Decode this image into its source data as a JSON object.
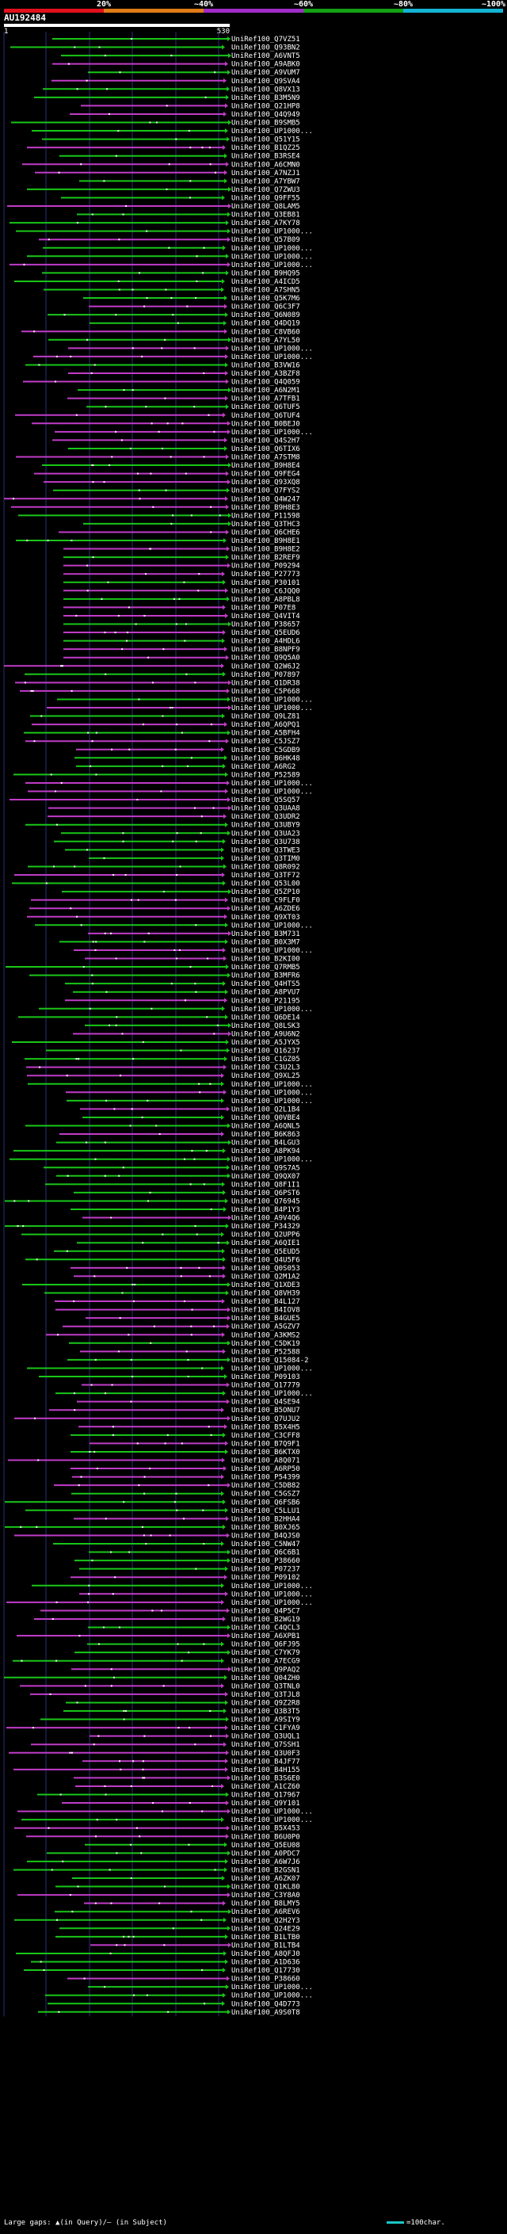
{
  "legend": {
    "segments": [
      {
        "label": "20%",
        "color": "#e0101c"
      },
      {
        "label": "~40%",
        "color": "#e07c18"
      },
      {
        "label": "~60%",
        "color": "#a02cc8"
      },
      {
        "label": "~80%",
        "color": "#14a014"
      },
      {
        "label": "~100%",
        "color": "#14b4d4"
      }
    ]
  },
  "query": {
    "id": "AU192484",
    "start": "1",
    "end": "530"
  },
  "colors": {
    "green": "#19c619",
    "magenta": "#c03cc8",
    "grid": "#2a2f7a",
    "dot": "#ffffff"
  },
  "hits": [
    "UniRef100_Q7VZ51",
    "UniRef100_Q93BN2",
    "UniRef100_A6VNT5",
    "UniRef100_A9ABK0",
    "UniRef100_A9VUM7",
    "UniRef100_Q9SVA4",
    "UniRef100_Q8VX13",
    "UniRef100_B3M5N9",
    "UniRef100_Q21HP8",
    "UniRef100_Q4Q949",
    "UniRef100_B9SMB5",
    "UniRef100_UP1000...",
    "UniRef100_Q51Y15",
    "UniRef100_B1QZ25",
    "UniRef100_B3RSE4",
    "UniRef100_A6CMN0",
    "UniRef100_A7NZJ1",
    "UniRef100_A7YBW7",
    "UniRef100_Q7ZWU3",
    "UniRef100_Q9FF55",
    "UniRef100_Q8LAM5",
    "UniRef100_Q3EB81",
    "UniRef100_A7KY78",
    "UniRef100_UP1000...",
    "UniRef100_Q57B09",
    "UniRef100_UP1000...",
    "UniRef100_UP1000...",
    "UniRef100_UP1000...",
    "UniRef100_B9HQ95",
    "UniRef100_A4ICD5",
    "UniRef100_A7SHN5",
    "UniRef100_Q5K7M6",
    "UniRef100_Q6C3F7",
    "UniRef100_Q6N089",
    "UniRef100_Q4DQ19",
    "UniRef100_C8VB60",
    "UniRef100_A7YL50",
    "UniRef100_UP1000...",
    "UniRef100_UP1000...",
    "UniRef100_B3VW16",
    "UniRef100_A3BZF8",
    "UniRef100_Q4Q059",
    "UniRef100_A6N2M1",
    "UniRef100_A7TFB1",
    "UniRef100_Q6TUF5",
    "UniRef100_Q6TUF4",
    "UniRef100_B0BEJ0",
    "UniRef100_UP1000...",
    "UniRef100_Q4S2H7",
    "UniRef100_Q6TIX6",
    "UniRef100_A7STM8",
    "UniRef100_B9H8E4",
    "UniRef100_Q9FEG4",
    "UniRef100_Q93XQ8",
    "UniRef100_Q7FYS2",
    "UniRef100_Q4W247",
    "UniRef100_B9H8E3",
    "UniRef100_P11598",
    "UniRef100_Q3THC3",
    "UniRef100_Q6CHE6",
    "UniRef100_B9H8E1",
    "UniRef100_B9H8E2",
    "UniRef100_B2REF9",
    "UniRef100_P09294",
    "UniRef100_P27773",
    "UniRef100_P30101",
    "UniRef100_C6JQQ0",
    "UniRef100_A8PBL8",
    "UniRef100_P07E8",
    "UniRef100_Q4VIT4",
    "UniRef100_P38657",
    "UniRef100_Q5EUD6",
    "UniRef100_A4HDL6",
    "UniRef100_B8NPF9",
    "UniRef100_Q9Q5A0",
    "UniRef100_Q2W6J2",
    "UniRef100_P07897",
    "UniRef100_Q1DR38",
    "UniRef100_C5P668",
    "UniRef100_UP1000...",
    "UniRef100_UP1000...",
    "UniRef100_Q9LZ81",
    "UniRef100_A6QPQ1",
    "UniRef100_A5BFH4",
    "UniRef100_C5JSZ7",
    "UniRef100_C5GDB9",
    "UniRef100_B6HK48",
    "UniRef100_A6RG2",
    "UniRef100_P52589",
    "UniRef100_UP1000...",
    "UniRef100_UP1000...",
    "UniRef100_Q5SQ57",
    "UniRef100_Q3UAA8",
    "UniRef100_Q3UDR2",
    "UniRef100_Q3UBY9",
    "UniRef100_Q3UA23",
    "UniRef100_Q3U738",
    "UniRef100_Q3TWE3",
    "UniRef100_Q3TIM0",
    "UniRef100_Q8R092",
    "UniRef100_Q3TF72",
    "UniRef100_Q53L00",
    "UniRef100_Q5ZP10",
    "UniRef100_C9FLF0",
    "UniRef100_A6ZDE6",
    "UniRef100_Q9XT03",
    "UniRef100_UP1000...",
    "UniRef100_B3M731",
    "UniRef100_B0X3M7",
    "UniRef100_UP1000...",
    "UniRef100_B2KI00",
    "UniRef100_Q7RMB5",
    "UniRef100_B3MFR6",
    "UniRef100_Q4HTS5",
    "UniRef100_A8PVU7",
    "UniRef100_P21195",
    "UniRef100_UP1000...",
    "UniRef100_Q6DE14",
    "UniRef100_Q8LSK3",
    "UniRef100_A9U6N2",
    "UniRef100_A5JYX5",
    "UniRef100_Q16237",
    "UniRef100_C1GZ05",
    "UniRef100_C3U2L3",
    "UniRef100_Q9XL25",
    "UniRef100_UP1000...",
    "UniRef100_UP1000...",
    "UniRef100_UP1000...",
    "UniRef100_Q2L1B4",
    "UniRef100_Q0VBE4",
    "UniRef100_A6QNL5",
    "UniRef100_B6K863",
    "UniRef100_B4LGU3",
    "UniRef100_A8PK94",
    "UniRef100_UP1000...",
    "UniRef100_Q9S7A5",
    "UniRef100_Q9QX07",
    "UniRef100_Q8F1I1",
    "UniRef100_Q6PST6",
    "UniRef100_Q76945",
    "UniRef100_B4P1Y3",
    "UniRef100_A9V4Q6",
    "UniRef100_P34329",
    "UniRef100_Q2UPP6",
    "UniRef100_A6QIE1",
    "UniRef100_Q5EUD5",
    "UniRef100_Q4U5F6",
    "UniRef100_Q0S053",
    "UniRef100_Q2M1A2",
    "UniRef100_Q1XDE3",
    "UniRef100_Q8VH39",
    "UniRef100_B4L127",
    "UniRef100_B4IOV8",
    "UniRef100_B4GUE5",
    "UniRef100_A5GZV7",
    "UniRef100_A3KMS2",
    "UniRef100_C5DK19",
    "UniRef100_P52588",
    "UniRef100_Q15084-2",
    "UniRef100_UP1000...",
    "UniRef100_P09103",
    "UniRef100_Q17779",
    "UniRef100_UP1000...",
    "UniRef100_Q4SE94",
    "UniRef100_B5ONU7",
    "UniRef100_Q7UJU2",
    "UniRef100_B5X4H5",
    "UniRef100_C3CFF8",
    "UniRef100_B7Q9F1",
    "UniRef100_B6KTX0",
    "UniRef100_A8Q071",
    "UniRef100_A6RP50",
    "UniRef100_P54399",
    "UniRef100_C5DB82",
    "UniRef100_C5GSZ7",
    "UniRef100_Q6FSB6",
    "UniRef100_C5LLU1",
    "UniRef100_B2HHA4",
    "UniRef100_B0XJ65",
    "UniRef100_B4QJS0",
    "UniRef100_C5NW47",
    "UniRef100_Q6C6B1",
    "UniRef100_P38660",
    "UniRef100_P07237",
    "UniRef100_P09102",
    "UniRef100_UP1000...",
    "UniRef100_UP1000...",
    "UniRef100_UP1000...",
    "UniRef100_Q4P5C7",
    "UniRef100_B2WG19",
    "UniRef100_C4QCL3",
    "UniRef100_A6XPB1",
    "UniRef100_Q6FJ95",
    "UniRef100_C7YK79",
    "UniRef100_A7ECG9",
    "UniRef100_Q9PAQ2",
    "UniRef100_Q04ZH0",
    "UniRef100_Q3TNL0",
    "UniRef100_Q3TJL8",
    "UniRef100_Q9Z2R8",
    "UniRef100_Q3B3T5",
    "UniRef100_A9SIY9",
    "UniRef100_C1FYA9",
    "UniRef100_Q3UQL1",
    "UniRef100_Q7SSH1",
    "UniRef100_Q3U0F3",
    "UniRef100_B4JF77",
    "UniRef100_B4H155",
    "UniRef100_B3S6E0",
    "UniRef100_A1CZ60",
    "UniRef100_Q17967",
    "UniRef100_Q9Y101",
    "UniRef100_UP1000...",
    "UniRef100_UP1000...",
    "UniRef100_B5X453",
    "UniRef100_B6U0P0",
    "UniRef100_Q5EU08",
    "UniRef100_A0PDC7",
    "UniRef100_A6W7J6",
    "UniRef100_B2GSN1",
    "UniRef100_A6ZK07",
    "UniRef100_Q1KL80",
    "UniRef100_C3Y8A0",
    "UniRef100_B8LMY5",
    "UniRef100_A6REV6",
    "UniRef100_Q2H2Y3",
    "UniRef100_Q24E29",
    "UniRef100_B1LTB0",
    "UniRef100_B1LTB4",
    "UniRef100_A8QFJ0",
    "UniRef100_A1D636",
    "UniRef100_Q17730",
    "UniRef100_P38660",
    "UniRef100_UP1000...",
    "UniRef100_UP1000...",
    "UniRef100_Q4D773",
    "UniRef100_A9S0T8"
  ],
  "footer": {
    "text": "Large gaps: ▲(in Query)/— (in Subject)",
    "scale_label": "=100char."
  }
}
